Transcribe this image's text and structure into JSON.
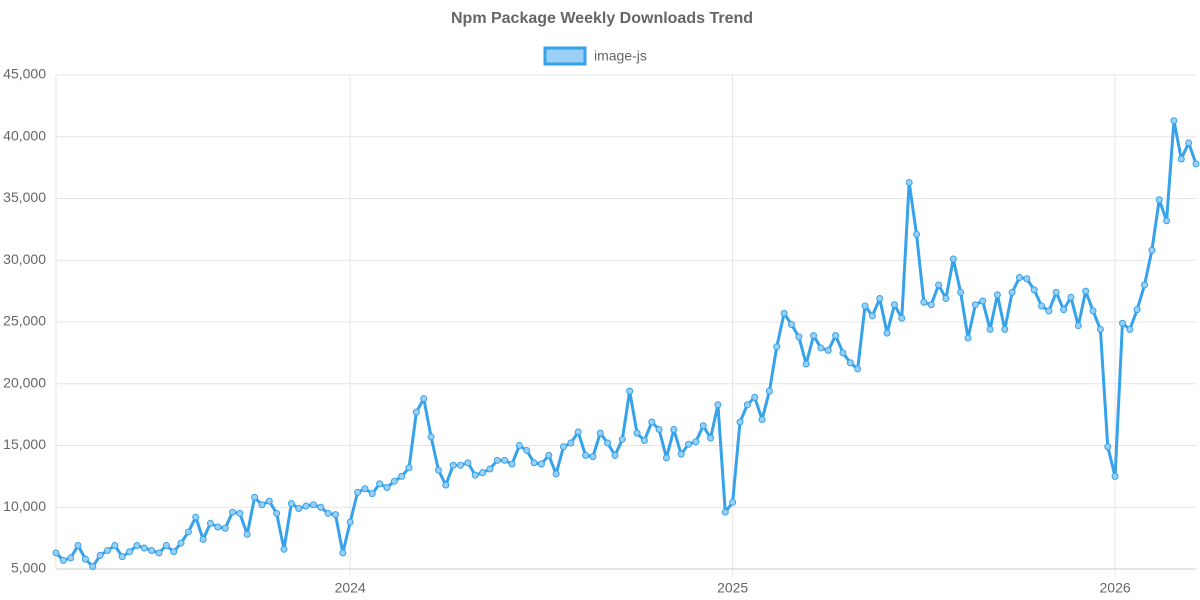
{
  "chart_data": {
    "type": "line",
    "title": "Npm Package Weekly Downloads Trend",
    "categories": [
      null,
      null,
      null,
      null,
      null,
      null,
      null,
      null,
      null,
      null,
      null,
      null,
      null,
      null,
      null,
      null,
      null,
      null,
      null,
      null,
      null,
      null,
      null,
      null,
      null,
      null,
      null,
      null,
      null,
      null,
      null,
      null,
      null,
      null,
      null,
      null,
      null,
      null,
      null,
      null,
      "2024",
      null,
      null,
      null,
      null,
      null,
      null,
      null,
      null,
      null,
      null,
      null,
      null,
      null,
      null,
      null,
      null,
      null,
      null,
      null,
      null,
      null,
      null,
      null,
      null,
      null,
      null,
      null,
      null,
      null,
      null,
      null,
      null,
      null,
      null,
      null,
      null,
      null,
      null,
      null,
      null,
      null,
      null,
      null,
      null,
      null,
      null,
      null,
      null,
      null,
      null,
      null,
      "2025",
      null,
      null,
      null,
      null,
      null,
      null,
      null,
      null,
      null,
      null,
      null,
      null,
      null,
      null,
      null,
      null,
      null,
      null,
      null,
      null,
      null,
      null,
      null,
      null,
      null,
      null,
      null,
      null,
      null,
      null,
      null,
      null,
      null,
      null,
      null,
      null,
      null,
      null,
      null,
      null,
      null,
      null,
      null,
      null,
      null,
      null,
      null,
      null,
      null,
      null,
      null,
      "2026",
      null,
      null,
      null,
      null,
      null,
      null,
      null,
      null,
      null,
      null,
      null
    ],
    "series": [
      {
        "name": "image-js",
        "color": "#36a2eb",
        "fill": "#9ad0f5",
        "values": [
          6300,
          5700,
          5900,
          6900,
          5800,
          5200,
          6100,
          6500,
          6900,
          6000,
          6400,
          6900,
          6700,
          6500,
          6300,
          6900,
          6400,
          7100,
          8000,
          9200,
          7400,
          8700,
          8400,
          8300,
          9600,
          9500,
          7800,
          10800,
          10200,
          10500,
          9500,
          6600,
          10300,
          9900,
          10100,
          10200,
          10000,
          9500,
          9400,
          6300,
          8800,
          11200,
          11500,
          11100,
          11900,
          11600,
          12100,
          12500,
          13200,
          17700,
          18800,
          15700,
          13000,
          11800,
          13400,
          13400,
          13600,
          12600,
          12800,
          13100,
          13800,
          13800,
          13500,
          15000,
          14600,
          13600,
          13500,
          14200,
          12700,
          14900,
          15200,
          16100,
          14200,
          14100,
          16000,
          15200,
          14200,
          15500,
          19400,
          16000,
          15400,
          16900,
          16300,
          14000,
          16300,
          14300,
          15100,
          15300,
          16600,
          15600,
          18300,
          9600,
          10400,
          16900,
          18300,
          18900,
          17100,
          19400,
          23000,
          25700,
          24800,
          23800,
          21600,
          23900,
          22900,
          22700,
          23900,
          22500,
          21700,
          21200,
          26300,
          25500,
          26900,
          24100,
          26400,
          25300,
          36300,
          32100,
          26600,
          26400,
          28000,
          26900,
          30100,
          27400,
          23700,
          26400,
          26700,
          24400,
          27200,
          24400,
          27400,
          28600,
          28500,
          27600,
          26300,
          25900,
          27400,
          26000,
          27000,
          24700,
          27500,
          25900,
          24400,
          14900,
          12500,
          24900,
          24400,
          26000,
          28000,
          30800,
          34900,
          33200,
          41300,
          38200,
          39500,
          37800
        ]
      }
    ],
    "ylim": [
      5000,
      45000
    ],
    "yticks": [
      {
        "value": 5000,
        "label": "5,000"
      },
      {
        "value": 10000,
        "label": "10,000"
      },
      {
        "value": 15000,
        "label": "15,000"
      },
      {
        "value": 20000,
        "label": "20,000"
      },
      {
        "value": 25000,
        "label": "25,000"
      },
      {
        "value": 30000,
        "label": "30,000"
      },
      {
        "value": 35000,
        "label": "35,000"
      },
      {
        "value": 40000,
        "label": "40,000"
      },
      {
        "value": 45000,
        "label": "45,000"
      }
    ],
    "grid": true,
    "legend": "top"
  }
}
